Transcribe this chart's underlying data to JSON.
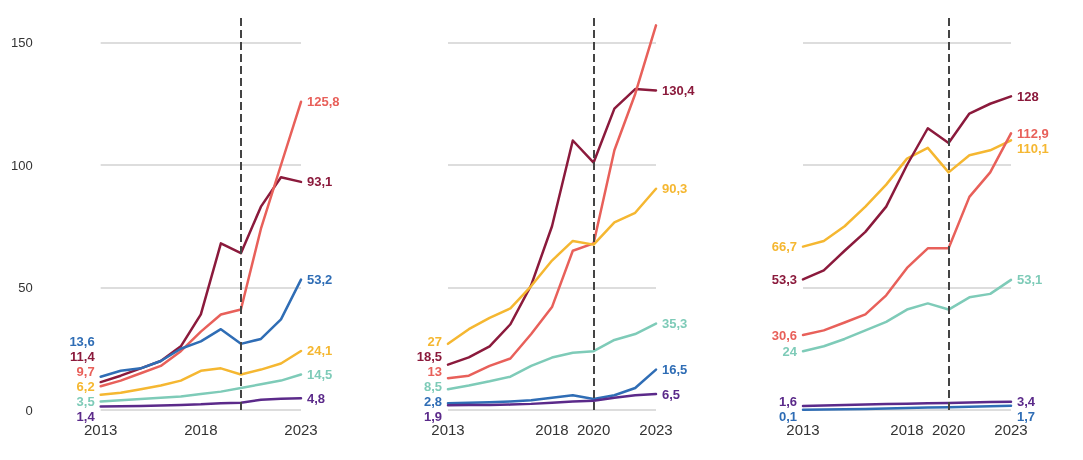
{
  "chart_data": [
    {
      "type": "line",
      "x": [
        2013,
        2014,
        2015,
        2016,
        2017,
        2018,
        2019,
        2020,
        2021,
        2022,
        2023
      ],
      "xlim": [
        2013,
        2023
      ],
      "xticks": [
        2013,
        2018,
        2023
      ],
      "ylim": [
        0,
        160
      ],
      "yticks": [
        0,
        50,
        100,
        150
      ],
      "grid": "y",
      "ref_lines": [
        {
          "axis": "x",
          "value": 2020,
          "line_style": "dashed"
        }
      ],
      "series": [
        {
          "color": "#8b1a3c",
          "values": [
            11.4,
            14,
            17,
            20,
            26,
            39,
            68,
            64,
            83,
            95,
            93.1
          ],
          "value_labels": [
            "11,4",
            null,
            null,
            null,
            null,
            null,
            null,
            null,
            null,
            null,
            "93,1"
          ]
        },
        {
          "color": "#e8605a",
          "values": [
            9.7,
            12,
            15,
            18,
            24,
            32,
            39,
            41,
            74,
            100,
            125.8
          ],
          "value_labels": [
            "9,7",
            null,
            null,
            null,
            null,
            null,
            null,
            null,
            null,
            null,
            "125,8"
          ]
        },
        {
          "color": "#2f6db5",
          "values": [
            13.6,
            16,
            17,
            20,
            25,
            28,
            33,
            27,
            29,
            37,
            53.2
          ],
          "value_labels": [
            "13,6",
            null,
            null,
            null,
            null,
            null,
            null,
            null,
            null,
            null,
            "53,2"
          ]
        },
        {
          "color": "#f5b731",
          "values": [
            6.2,
            7,
            8.5,
            10,
            12,
            16,
            17,
            14.5,
            16.5,
            19,
            24.1
          ],
          "value_labels": [
            "6,2",
            null,
            null,
            null,
            null,
            null,
            null,
            null,
            null,
            null,
            "24,1"
          ]
        },
        {
          "color": "#7ecbb8",
          "values": [
            3.5,
            4,
            4.5,
            5,
            5.5,
            6.5,
            7.5,
            9,
            10.5,
            12,
            14.5
          ],
          "value_labels": [
            "3,5",
            null,
            null,
            null,
            null,
            null,
            null,
            null,
            null,
            null,
            "14,5"
          ]
        },
        {
          "color": "#5b2a8a",
          "values": [
            1.4,
            1.5,
            1.6,
            1.8,
            2,
            2.3,
            2.8,
            3,
            4.2,
            4.6,
            4.8
          ],
          "value_labels": [
            "1,4",
            null,
            null,
            null,
            null,
            null,
            null,
            null,
            null,
            null,
            "4,8"
          ]
        }
      ]
    },
    {
      "type": "line",
      "x": [
        2013,
        2014,
        2015,
        2016,
        2017,
        2018,
        2019,
        2020,
        2021,
        2022,
        2023
      ],
      "xlim": [
        2013,
        2023
      ],
      "xticks": [
        2013,
        2018,
        2020,
        2023
      ],
      "ylim": [
        0,
        160
      ],
      "yticks": [
        0,
        50,
        100,
        150
      ],
      "grid": "y",
      "tick_labels": "x",
      "ref_lines": [
        {
          "axis": "x",
          "value": 2020,
          "line_style": "dashed"
        }
      ],
      "series": [
        {
          "color": "#8b1a3c",
          "values": [
            18.5,
            21.5,
            26,
            35,
            51,
            75,
            110,
            101,
            123,
            131,
            130.4
          ],
          "value_labels": [
            "18,5",
            null,
            null,
            null,
            null,
            null,
            null,
            null,
            null,
            null,
            "130,4"
          ]
        },
        {
          "color": "#e8605a",
          "values": [
            13,
            14,
            18,
            21,
            31,
            42,
            65,
            68,
            106,
            129,
            157
          ],
          "value_labels": [
            "13",
            null,
            null,
            null,
            null,
            null,
            null,
            null,
            null,
            null,
            null
          ]
        },
        {
          "color": "#f5b731",
          "values": [
            27,
            33,
            37.6,
            41.5,
            50.6,
            61,
            69,
            67.5,
            76.6,
            80.5,
            90.3
          ],
          "value_labels": [
            "27",
            null,
            null,
            null,
            null,
            null,
            null,
            null,
            null,
            null,
            "90,3"
          ]
        },
        {
          "color": "#7ecbb8",
          "values": [
            8.5,
            10,
            11.7,
            13.6,
            18,
            21.4,
            23.4,
            24,
            28.6,
            31,
            35.3
          ],
          "value_labels": [
            "8,5",
            null,
            null,
            null,
            null,
            null,
            null,
            null,
            null,
            null,
            "35,3"
          ]
        },
        {
          "color": "#2f6db5",
          "values": [
            2.8,
            3,
            3.2,
            3.5,
            4,
            5,
            6,
            4.5,
            6,
            9,
            16.5
          ],
          "value_labels": [
            "2,8",
            null,
            null,
            null,
            null,
            null,
            null,
            null,
            null,
            null,
            "16,5"
          ]
        },
        {
          "color": "#5b2a8a",
          "values": [
            1.9,
            2,
            2,
            2.2,
            2.5,
            3,
            3.5,
            3.8,
            5,
            6,
            6.5
          ],
          "value_labels": [
            "1,9",
            null,
            null,
            null,
            null,
            null,
            null,
            null,
            null,
            null,
            "6,5"
          ]
        }
      ]
    },
    {
      "type": "line",
      "x": [
        2013,
        2014,
        2015,
        2016,
        2017,
        2018,
        2019,
        2020,
        2021,
        2022,
        2023
      ],
      "xlim": [
        2013,
        2023
      ],
      "xticks": [
        2013,
        2018,
        2020,
        2023
      ],
      "ylim": [
        0,
        160
      ],
      "yticks": [
        0,
        50,
        100,
        150
      ],
      "grid": "y",
      "tick_labels": "x",
      "ref_lines": [
        {
          "axis": "x",
          "value": 2020,
          "line_style": "dashed"
        }
      ],
      "series": [
        {
          "color": "#f5b731",
          "values": [
            66.7,
            69,
            75,
            83,
            92,
            102.6,
            107,
            97,
            104,
            106,
            110.1
          ],
          "value_labels": [
            "66,7",
            null,
            null,
            null,
            null,
            null,
            null,
            null,
            null,
            null,
            "110,1"
          ]
        },
        {
          "color": "#8b1a3c",
          "values": [
            53.3,
            57,
            65,
            72.7,
            83,
            100,
            115,
            109,
            121,
            125,
            128
          ],
          "value_labels": [
            "53,3",
            null,
            null,
            null,
            null,
            null,
            null,
            null,
            null,
            null,
            "128"
          ]
        },
        {
          "color": "#e8605a",
          "values": [
            30.6,
            32.5,
            35.7,
            39,
            46.8,
            58,
            66,
            66,
            87,
            97,
            112.9
          ],
          "value_labels": [
            "30,6",
            null,
            null,
            null,
            null,
            null,
            null,
            null,
            null,
            null,
            "112,9"
          ]
        },
        {
          "color": "#7ecbb8",
          "values": [
            24,
            26,
            29,
            32.5,
            36,
            41,
            43.5,
            41,
            46,
            47.4,
            53.1
          ],
          "value_labels": [
            "24",
            null,
            null,
            null,
            null,
            null,
            null,
            null,
            null,
            null,
            "53,1"
          ]
        },
        {
          "color": "#5b2a8a",
          "values": [
            1.6,
            1.8,
            2,
            2.2,
            2.4,
            2.6,
            2.8,
            2.9,
            3.1,
            3.3,
            3.4
          ],
          "value_labels": [
            "1,6",
            null,
            null,
            null,
            null,
            null,
            null,
            null,
            null,
            null,
            "3,4"
          ]
        },
        {
          "color": "#2f6db5",
          "values": [
            0.1,
            0.2,
            0.3,
            0.4,
            0.6,
            0.8,
            1,
            1.1,
            1.3,
            1.5,
            1.7
          ],
          "value_labels": [
            "0,1",
            null,
            null,
            null,
            null,
            null,
            null,
            null,
            null,
            null,
            "1,7"
          ]
        }
      ]
    }
  ]
}
